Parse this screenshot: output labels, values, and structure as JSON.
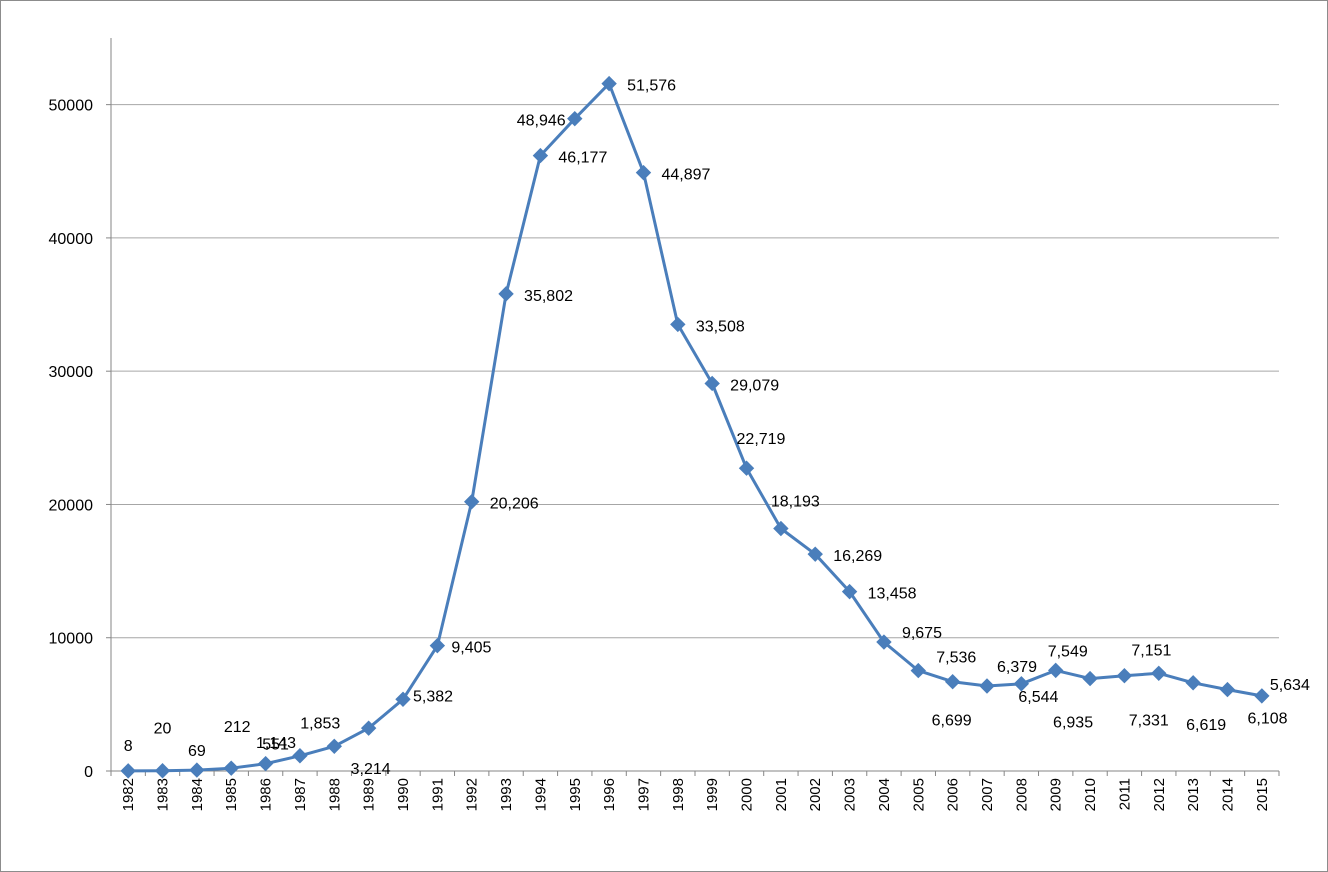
{
  "chart_data": {
    "type": "line",
    "title": "",
    "xlabel": "",
    "ylabel": "",
    "categories": [
      "1982",
      "1983",
      "1984",
      "1985",
      "1986",
      "1987",
      "1988",
      "1989",
      "1990",
      "1991",
      "1992",
      "1993",
      "1994",
      "1995",
      "1996",
      "1997",
      "1998",
      "1999",
      "2000",
      "2001",
      "2002",
      "2003",
      "2004",
      "2005",
      "2006",
      "2007",
      "2008",
      "2009",
      "2010",
      "2011",
      "2012",
      "2013",
      "2014",
      "2015"
    ],
    "series": [
      {
        "values": [
          8,
          20,
          69,
          212,
          551,
          1143,
          1853,
          3214,
          5382,
          9405,
          20206,
          35802,
          46177,
          48946,
          51576,
          44897,
          33508,
          29079,
          22719,
          18193,
          16269,
          13458,
          9675,
          7536,
          6699,
          6379,
          6544,
          7549,
          6935,
          7151,
          7331,
          6619,
          6108,
          5634
        ],
        "labels": [
          "8",
          "20",
          "69",
          "212",
          "551",
          "1,143",
          "1,853",
          "3,214",
          "5,382",
          "9,405",
          "20,206",
          "35,802",
          "46,177",
          "48,946",
          "51,576",
          "44,897",
          "33,508",
          "29,079",
          "22,719",
          "18,193",
          "16,269",
          "13,458",
          "9,675",
          "7,536",
          "6,699",
          "6,379",
          "6,544",
          "7,549",
          "6,935",
          "7,151",
          "7,331",
          "6,619",
          "6,108",
          "5,634"
        ],
        "color": "#4a7ebb"
      }
    ],
    "yticks": [
      "0",
      "10000",
      "20000",
      "30000",
      "40000",
      "50000"
    ],
    "ylim": [
      0,
      55000
    ],
    "grid": true,
    "legend": "none",
    "gridline_color": "#a6a6a6",
    "marker": "diamond"
  }
}
